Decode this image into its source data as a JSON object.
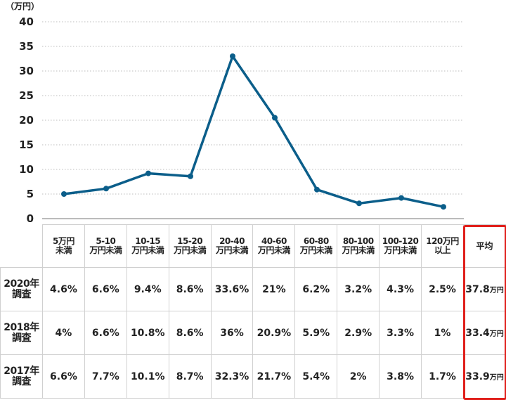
{
  "chart_data": {
    "type": "line",
    "unit_label": "（万円）",
    "ylim": [
      0,
      40
    ],
    "yticks": [
      "0",
      "5",
      "10",
      "15",
      "20",
      "25",
      "30",
      "35",
      "40"
    ],
    "categories": [
      [
        "5万円",
        "未満"
      ],
      [
        "5-10",
        "万円未満"
      ],
      [
        "10-15",
        "万円未満"
      ],
      [
        "15-20",
        "万円未満"
      ],
      [
        "20-40",
        "万円未満"
      ],
      [
        "40-60",
        "万円未満"
      ],
      [
        "60-80",
        "万円未満"
      ],
      [
        "80-100",
        "万円未満"
      ],
      [
        "100-120",
        "万円未満"
      ],
      [
        "120万円",
        "以上"
      ]
    ],
    "avg_header": "平均",
    "line_color": "#0b5e8a",
    "line_values": [
      5,
      6.1,
      9.2,
      8.6,
      33,
      20.5,
      5.9,
      3.1,
      4.2,
      2.4
    ],
    "series": [
      {
        "name": [
          "2020年",
          "調査"
        ],
        "values": [
          "4.6%",
          "6.6%",
          "9.4%",
          "8.6%",
          "33.6%",
          "21%",
          "6.2%",
          "3.2%",
          "4.3%",
          "2.5%"
        ],
        "avg": "37.8",
        "avg_unit": "万円"
      },
      {
        "name": [
          "2018年",
          "調査"
        ],
        "values": [
          "4%",
          "6.6%",
          "10.8%",
          "8.6%",
          "36%",
          "20.9%",
          "5.9%",
          "2.9%",
          "3.3%",
          "1%"
        ],
        "avg": "33.4",
        "avg_unit": "万円"
      },
      {
        "name": [
          "2017年",
          "調査"
        ],
        "values": [
          "6.6%",
          "7.7%",
          "10.1%",
          "8.7%",
          "32.3%",
          "21.7%",
          "5.4%",
          "2%",
          "3.8%",
          "1.7%"
        ],
        "avg": "33.9",
        "avg_unit": "万円"
      }
    ],
    "highlight_color": "#e0201c"
  }
}
